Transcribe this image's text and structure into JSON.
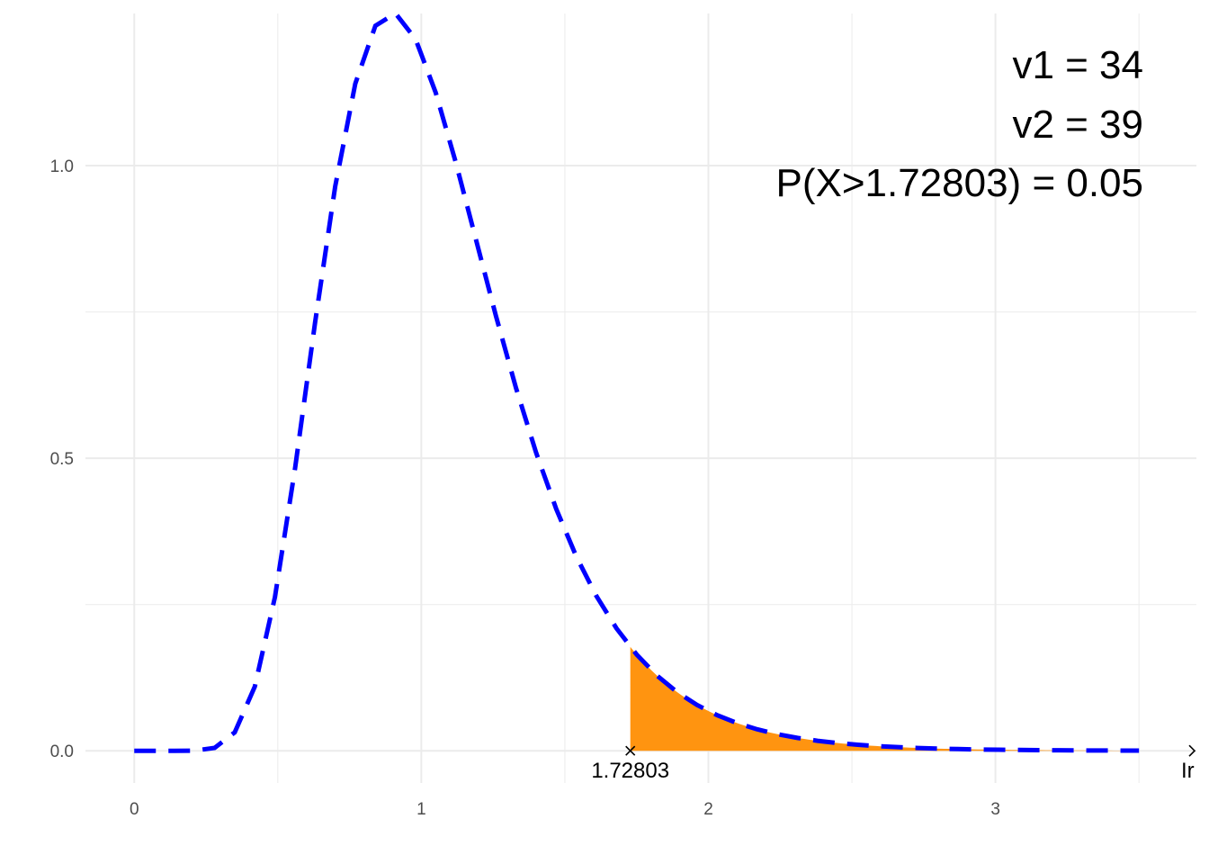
{
  "chart_data": {
    "type": "area",
    "distribution": "F",
    "df1": 34,
    "df2": 39,
    "critical_value": 1.72803,
    "tail_probability": 0.05,
    "xlim": [
      -0.17,
      3.7
    ],
    "ylim": [
      -0.055,
      1.26
    ],
    "x_ticks": [
      0,
      1,
      2,
      3
    ],
    "x_tick_labels": [
      "0",
      "1",
      "2",
      "3"
    ],
    "y_ticks": [
      0,
      0.5,
      1
    ],
    "y_tick_labels": [
      "0.0",
      "0.5",
      "1.0"
    ],
    "x_minor_gridlines": [
      0.5,
      1.5,
      2.5,
      3.5
    ],
    "y_minor_gridlines": [
      0.25,
      0.75
    ],
    "grid": true,
    "curve_x_end": 3.5,
    "annotations": [
      "v1 = 34",
      "v2 = 39",
      "P(X>1.72803) = 0.05"
    ],
    "marker_labels": {
      "lower": "1.72803",
      "upper": "Ir"
    },
    "colors": {
      "density_line": "#0000ff",
      "shaded_area": "#ff9410",
      "grid": "#ebebeb",
      "background": "#ffffff"
    }
  }
}
